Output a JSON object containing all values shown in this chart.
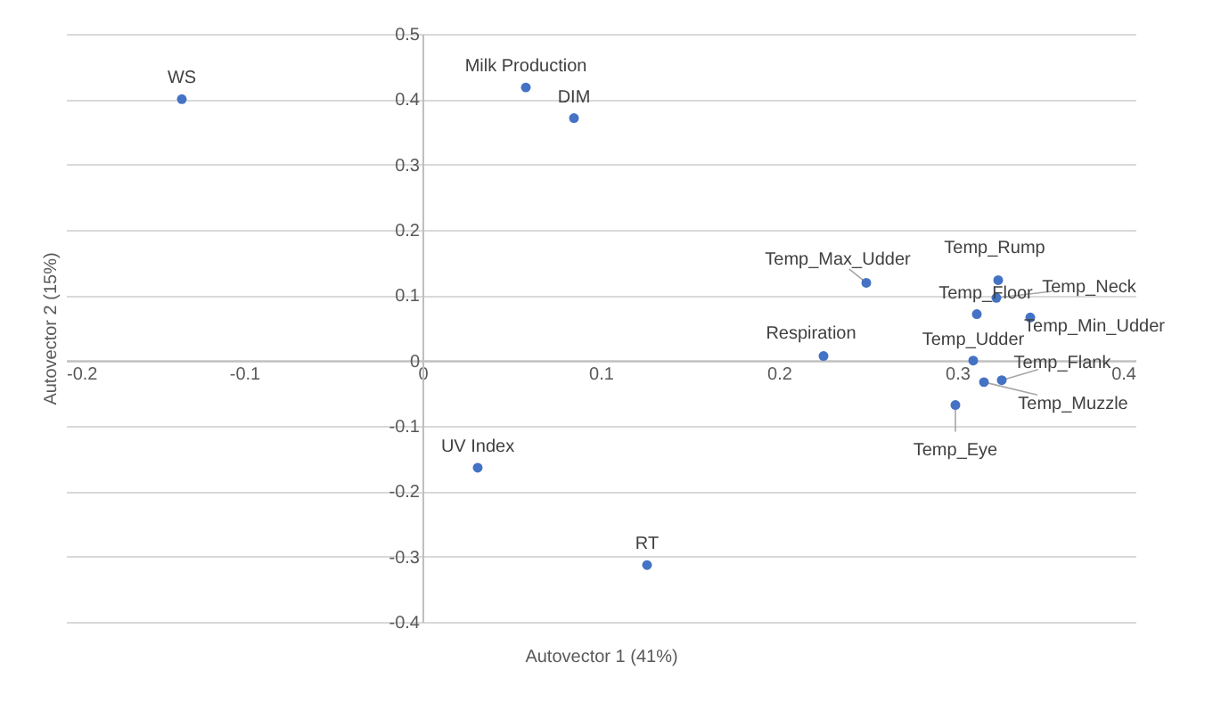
{
  "chart_data": {
    "type": "scatter",
    "xlabel": "Autovector 1 (41%)",
    "ylabel": "Autovector 2 (15%)",
    "xlim": [
      -0.2,
      0.4
    ],
    "xticks": [
      -0.2,
      -0.1,
      0,
      0.1,
      0.2,
      0.3,
      0.4
    ],
    "ylim": [
      -0.4,
      0.5
    ],
    "yticks": [
      -0.4,
      -0.3,
      -0.2,
      -0.1,
      0,
      0.1,
      0.2,
      0.3,
      0.4,
      0.5
    ],
    "grid": "y",
    "marker": "circle",
    "series": [
      {
        "color": "#4472c4",
        "x": [
          -0.135,
          0.058,
          0.085,
          0.249,
          0.323,
          0.322,
          0.311,
          0.341,
          0.225,
          0.309,
          0.325,
          0.315,
          0.299,
          0.031,
          0.126
        ],
        "values": [
          0.4,
          0.418,
          0.371,
          0.119,
          0.123,
          0.096,
          0.071,
          0.066,
          0.007,
          0.0,
          -0.03,
          -0.033,
          -0.068,
          -0.164,
          -0.313
        ]
      }
    ],
    "annotations": [
      {
        "text": "WS",
        "x": -0.135,
        "y": 0.4
      },
      {
        "text": "Milk Production",
        "x": 0.058,
        "y": 0.418
      },
      {
        "text": "DIM",
        "x": 0.085,
        "y": 0.371
      },
      {
        "text": "Temp_Max_Udder",
        "x": 0.249,
        "y": 0.119
      },
      {
        "text": "Temp_Rump",
        "x": 0.323,
        "y": 0.123
      },
      {
        "text": "Temp_Neck",
        "x": 0.322,
        "y": 0.096
      },
      {
        "text": "Temp_Floor",
        "x": 0.311,
        "y": 0.071
      },
      {
        "text": "Temp_Min_Udder",
        "x": 0.341,
        "y": 0.066
      },
      {
        "text": "Respiration",
        "x": 0.225,
        "y": 0.007
      },
      {
        "text": "Temp_Udder",
        "x": 0.309,
        "y": 0.0
      },
      {
        "text": "Temp_Flank",
        "x": 0.325,
        "y": -0.03
      },
      {
        "text": "Temp_Muzzle",
        "x": 0.315,
        "y": -0.033
      },
      {
        "text": "Temp_Eye",
        "x": 0.299,
        "y": -0.068
      },
      {
        "text": "UV Index",
        "x": 0.031,
        "y": -0.164
      },
      {
        "text": "RT",
        "x": 0.126,
        "y": -0.313
      }
    ]
  }
}
